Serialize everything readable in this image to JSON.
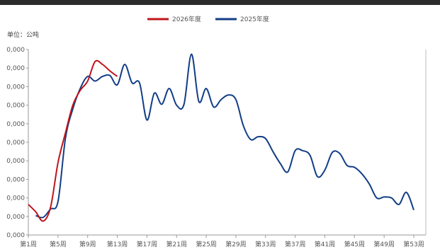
{
  "unit_label": "单位：公吨",
  "colors": {
    "series_2026": "#c0141c",
    "series_2025": "#123d86",
    "axis": "#999999"
  },
  "chart_data": {
    "type": "line",
    "title": "",
    "xlabel": "",
    "ylabel": "",
    "y_tick_labels": [
      "0,000",
      "0,000",
      "0,000",
      "0,000",
      "0,000",
      "0,000",
      "0,000",
      "0,000",
      "0,000",
      "0,000",
      "0,000"
    ],
    "x_tick_labels": [
      "第1周",
      "第5周",
      "第9周",
      "第13周",
      "第17周",
      "第21周",
      "第25周",
      "第29周",
      "第33周",
      "第37周",
      "第41周",
      "第45周",
      "第49周",
      "第53周"
    ],
    "xlim": [
      1,
      53
    ],
    "ylim": [
      0,
      10
    ],
    "grid": false,
    "legend_position": "top-center",
    "series": [
      {
        "name": "2026年度",
        "color": "#c0141c",
        "points": [
          [
            1,
            1.65
          ],
          [
            2,
            1.25
          ],
          [
            3,
            0.75
          ],
          [
            4,
            1.5
          ],
          [
            5,
            3.9
          ],
          [
            6,
            5.5
          ],
          [
            7,
            7.0
          ],
          [
            8,
            7.8
          ],
          [
            9,
            8.3
          ],
          [
            10,
            9.35
          ],
          [
            11,
            9.2
          ],
          [
            12,
            8.85
          ],
          [
            13,
            8.55
          ]
        ]
      },
      {
        "name": "2025年度",
        "color": "#123d86",
        "points": [
          [
            2,
            1.05
          ],
          [
            3,
            0.95
          ],
          [
            4,
            1.4
          ],
          [
            5,
            1.8
          ],
          [
            6,
            5.2
          ],
          [
            7,
            6.8
          ],
          [
            8,
            7.9
          ],
          [
            9,
            8.55
          ],
          [
            10,
            8.3
          ],
          [
            11,
            8.55
          ],
          [
            12,
            8.6
          ],
          [
            13,
            8.1
          ],
          [
            14,
            9.2
          ],
          [
            15,
            8.2
          ],
          [
            16,
            8.2
          ],
          [
            17,
            6.2
          ],
          [
            18,
            7.65
          ],
          [
            19,
            7.05
          ],
          [
            20,
            7.9
          ],
          [
            21,
            7.0
          ],
          [
            22,
            7.05
          ],
          [
            23,
            9.75
          ],
          [
            24,
            7.2
          ],
          [
            25,
            7.9
          ],
          [
            26,
            6.9
          ],
          [
            27,
            7.3
          ],
          [
            28,
            7.55
          ],
          [
            29,
            7.3
          ],
          [
            30,
            5.9
          ],
          [
            31,
            5.15
          ],
          [
            32,
            5.3
          ],
          [
            33,
            5.2
          ],
          [
            34,
            4.5
          ],
          [
            35,
            3.85
          ],
          [
            36,
            3.4
          ],
          [
            37,
            4.55
          ],
          [
            38,
            4.55
          ],
          [
            39,
            4.3
          ],
          [
            40,
            3.15
          ],
          [
            41,
            3.5
          ],
          [
            42,
            4.45
          ],
          [
            43,
            4.4
          ],
          [
            44,
            3.75
          ],
          [
            45,
            3.65
          ],
          [
            46,
            3.3
          ],
          [
            47,
            2.75
          ],
          [
            48,
            2.0
          ],
          [
            49,
            2.05
          ],
          [
            50,
            2.0
          ],
          [
            51,
            1.65
          ],
          [
            52,
            2.3
          ],
          [
            53,
            1.35
          ]
        ]
      }
    ]
  }
}
